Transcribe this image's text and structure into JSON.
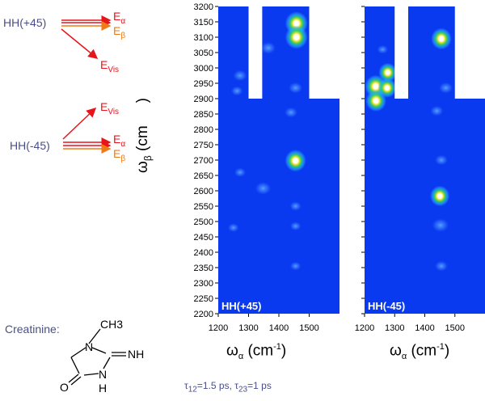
{
  "colors": {
    "map_blue": "#0a3af0",
    "alpha_arrow": "#e8141c",
    "beta_arrow": "#f07a18",
    "vis_arrow": "#e8141c",
    "state_text": "#4a4e86",
    "peak_hot": "#ffffff",
    "peak_mid": "#f0e020"
  },
  "energy_diagram": {
    "top": {
      "state": "HH(+45)",
      "levels": [
        "Eα",
        "Eβ",
        "EVis"
      ]
    },
    "bottom": {
      "state": "HH(-45)",
      "levels": [
        "EVis",
        "Eα",
        "Eβ"
      ]
    },
    "level_text": {
      "alpha_main": "E",
      "alpha_sub": "α",
      "beta_main": "E",
      "beta_sub": "β",
      "vis_main": "E",
      "vis_sub": "Vis"
    }
  },
  "molecule": {
    "name": "Creatinine:",
    "atoms": [
      "CH3",
      "N",
      "NH",
      "N",
      "O",
      "H"
    ]
  },
  "footnote": {
    "tau12_symbol": "τ",
    "tau12_sub": "12",
    "tau12_value": "=1.5 ps, ",
    "tau23_symbol": "τ",
    "tau23_sub": "23",
    "tau23_value": "=1 ps"
  },
  "axes": {
    "ylabel_main": "ω",
    "ylabel_sub": "β",
    "ylabel_unit": "(cm",
    "ylabel_close": ")",
    "xlabel_main": "ω",
    "xlabel_sub": "α",
    "xlabel_unit": "(cm",
    "xlabel_exp": "-1",
    "xlabel_close": ")"
  },
  "chart_data": [
    {
      "type": "heatmap",
      "title": "",
      "panel_label": "HH(+45)",
      "xlim": [
        1200,
        1600
      ],
      "ylim": [
        2200,
        3200
      ],
      "x_ticks": [
        1200,
        1300,
        1400,
        1500
      ],
      "y_ticks": [
        2200,
        2250,
        2300,
        2350,
        2400,
        2450,
        2500,
        2550,
        2600,
        2650,
        2700,
        2750,
        2800,
        2850,
        2900,
        2950,
        3000,
        3050,
        3100,
        3150,
        3200
      ],
      "blank_regions": [
        {
          "x": [
            1300,
            1345
          ],
          "y": [
            2900,
            3200
          ]
        },
        {
          "x": [
            1500,
            1600
          ],
          "y": [
            2900,
            3200
          ]
        }
      ],
      "peaks": [
        {
          "x": 1458,
          "y": 3145,
          "intensity": 1.0
        },
        {
          "x": 1458,
          "y": 3100,
          "intensity": 1.0
        },
        {
          "x": 1455,
          "y": 2698,
          "intensity": 0.85
        },
        {
          "x": 1365,
          "y": 3065,
          "intensity": 0.35
        },
        {
          "x": 1272,
          "y": 2975,
          "intensity": 0.3
        },
        {
          "x": 1348,
          "y": 2608,
          "intensity": 0.4
        },
        {
          "x": 1455,
          "y": 2935,
          "intensity": 0.3
        },
        {
          "x": 1440,
          "y": 2855,
          "intensity": 0.25
        },
        {
          "x": 1262,
          "y": 2925,
          "intensity": 0.2
        },
        {
          "x": 1272,
          "y": 2660,
          "intensity": 0.18
        },
        {
          "x": 1455,
          "y": 2550,
          "intensity": 0.18
        },
        {
          "x": 1455,
          "y": 2485,
          "intensity": 0.15
        },
        {
          "x": 1250,
          "y": 2480,
          "intensity": 0.15
        },
        {
          "x": 1455,
          "y": 2355,
          "intensity": 0.15
        }
      ]
    },
    {
      "type": "heatmap",
      "title": "",
      "panel_label": "HH(-45)",
      "xlim": [
        1200,
        1600
      ],
      "ylim": [
        2200,
        3200
      ],
      "x_ticks": [
        1200,
        1300,
        1400,
        1500
      ],
      "blank_regions": [
        {
          "x": [
            1300,
            1345
          ],
          "y": [
            2900,
            3200
          ]
        },
        {
          "x": [
            1500,
            1600
          ],
          "y": [
            2900,
            3200
          ]
        }
      ],
      "peaks": [
        {
          "x": 1237,
          "y": 2940,
          "intensity": 0.9
        },
        {
          "x": 1238,
          "y": 2893,
          "intensity": 0.8
        },
        {
          "x": 1275,
          "y": 2935,
          "intensity": 0.6
        },
        {
          "x": 1277,
          "y": 2985,
          "intensity": 0.55
        },
        {
          "x": 1455,
          "y": 3095,
          "intensity": 0.8
        },
        {
          "x": 1450,
          "y": 2583,
          "intensity": 0.7
        },
        {
          "x": 1452,
          "y": 2488,
          "intensity": 0.45
        },
        {
          "x": 1470,
          "y": 2935,
          "intensity": 0.3
        },
        {
          "x": 1440,
          "y": 2860,
          "intensity": 0.25
        },
        {
          "x": 1455,
          "y": 2700,
          "intensity": 0.25
        },
        {
          "x": 1455,
          "y": 2355,
          "intensity": 0.25
        },
        {
          "x": 1260,
          "y": 3060,
          "intensity": 0.15
        }
      ]
    }
  ]
}
